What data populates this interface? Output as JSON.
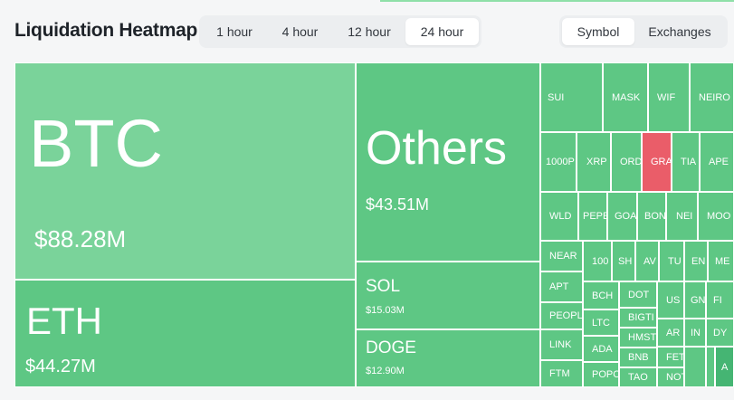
{
  "header": {
    "title": "Liquidation Heatmap"
  },
  "time_tabs": [
    {
      "label": "1 hour",
      "active": false
    },
    {
      "label": "4 hour",
      "active": false
    },
    {
      "label": "12 hour",
      "active": false
    },
    {
      "label": "24 hour",
      "active": true
    }
  ],
  "view_tabs": [
    {
      "label": "Symbol",
      "active": true
    },
    {
      "label": "Exchanges",
      "active": false
    }
  ],
  "colors": {
    "long_tile": "#5ec784",
    "btc_tile": "#7ad39a",
    "short_tile": "#ea5d69",
    "dark_tile": "#45b573"
  },
  "heatmap": {
    "btc": {
      "symbol": "BTC",
      "value": "$88.28M"
    },
    "eth": {
      "symbol": "ETH",
      "value": "$44.27M"
    },
    "others": {
      "symbol": "Others",
      "value": "$43.51M"
    },
    "sol": {
      "symbol": "SOL",
      "value": "$15.03M"
    },
    "doge": {
      "symbol": "DOGE",
      "value": "$12.90M"
    },
    "row1": [
      "SUI",
      "MASK",
      "WIF",
      "NEIRO"
    ],
    "row2": [
      "1000P",
      "XRP",
      "ORD",
      "GRA",
      "TIA",
      "APE"
    ],
    "row3": [
      "WLD",
      "PEPE",
      "GOA",
      "BON",
      "NEI",
      "MOO"
    ],
    "col_a": [
      "NEAR",
      "APT",
      "PEOPL",
      "LINK",
      "FTM"
    ],
    "row4b": [
      "100",
      "SH",
      "AV",
      "TU",
      "EN",
      "ME"
    ],
    "col_b": [
      "BCH",
      "LTC",
      "ADA",
      "POPC"
    ],
    "col_c": [
      "DOT",
      "BIGTI",
      "HMST",
      "BNB",
      "TAO"
    ],
    "col_d": [
      "US",
      "AR",
      "FET",
      "NOT"
    ],
    "col_e": [
      "GN",
      "IN"
    ],
    "col_f": [
      "FI",
      "DY",
      "A"
    ]
  }
}
